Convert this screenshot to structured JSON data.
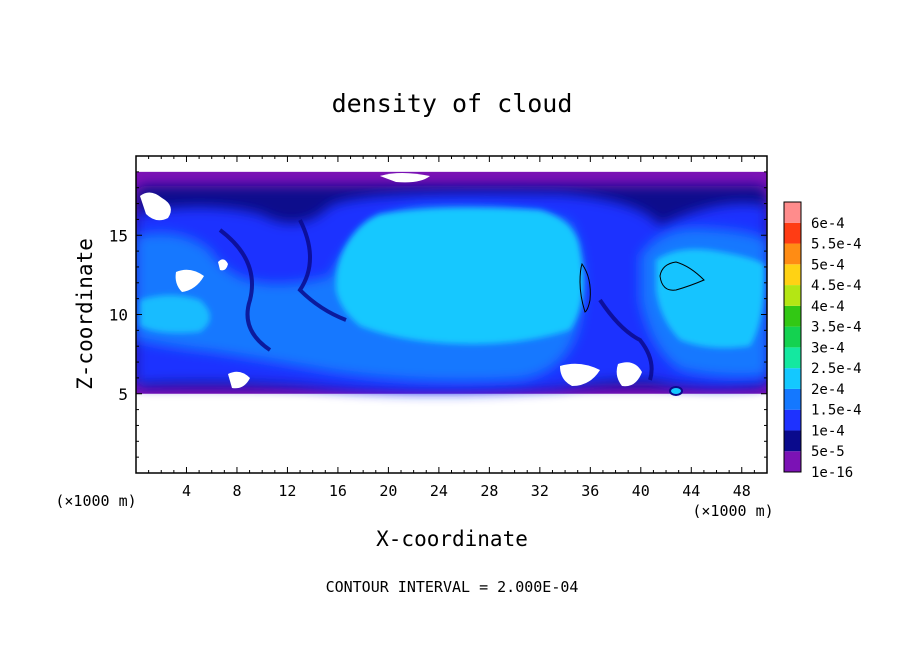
{
  "chart_data": {
    "type": "heatmap",
    "title": "density of cloud",
    "xlabel": "X-coordinate",
    "ylabel": "Z-coordinate",
    "x_unit_label": "(×1000 m)",
    "y_unit_label": "(×1000 m)",
    "footer": "CONTOUR INTERVAL = 2.000E-04",
    "xlim": [
      0,
      50
    ],
    "ylim": [
      0,
      20
    ],
    "x_ticks": [
      4,
      8,
      12,
      16,
      20,
      24,
      28,
      32,
      36,
      40,
      44,
      48
    ],
    "x_tick_labels": [
      "4",
      "8",
      "12",
      "16",
      "20",
      "24",
      "28",
      "32",
      "36",
      "40",
      "44",
      "48"
    ],
    "y_ticks": [
      5,
      10,
      15
    ],
    "y_tick_labels": [
      "5",
      "10",
      "15"
    ],
    "cloud_base_km": 5,
    "cloud_top_km": 19,
    "colorbar": {
      "levels": [
        {
          "label": "1e-16",
          "color": "#7b12b5"
        },
        {
          "label": "5e-5",
          "color": "#0a0a8c"
        },
        {
          "label": "1e-4",
          "color": "#1e32ff"
        },
        {
          "label": "1.5e-4",
          "color": "#1478ff"
        },
        {
          "label": "2e-4",
          "color": "#14c8ff"
        },
        {
          "label": "2.5e-4",
          "color": "#14e8a0"
        },
        {
          "label": "3e-4",
          "color": "#14d250"
        },
        {
          "label": "3.5e-4",
          "color": "#32c814"
        },
        {
          "label": "4e-4",
          "color": "#b4e614"
        },
        {
          "label": "4.5e-4",
          "color": "#ffd214"
        },
        {
          "label": "5e-4",
          "color": "#ff8c14"
        },
        {
          "label": "5.5e-4",
          "color": "#ff3c14"
        },
        {
          "label": "6e-4",
          "color": "#ff8c8c"
        }
      ]
    }
  }
}
